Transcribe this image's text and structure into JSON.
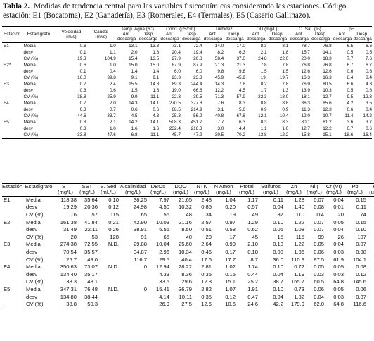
{
  "caption": {
    "label": "Tabla 2.",
    "text": "Medidas de tendencia central para las variables fisicoquímicas considerando las estaciones. Código estación: E1 (Bocatoma), E2 (Ganadería), E3 (Romerales, E4 (Termales), E5 (Caserío Gallinazo)."
  },
  "table1": {
    "h_estacion": "Estación",
    "h_estadigrafo": "Estadígrafo",
    "h_velocidad": "Velocidad",
    "h_velocidad_u": "(m/s)",
    "h_caudal": "Caudal",
    "h_caudal_u": "(m³/s)",
    "h_temp": "Temp. Agua (ºC)",
    "h_cond": "Cond. (μS/cm)",
    "h_turb": "Turbidez",
    "h_od": "OD (mg/L)",
    "h_osat": "O. Sat. (%)",
    "h_ph": "pH",
    "sub_ant": "Ant.",
    "sub_desp": "Desp.",
    "sub_descarga": "descarga",
    "rows": [
      [
        "E1",
        "Media",
        "0.6",
        "1.0",
        "13.1",
        "13.3",
        "73.1",
        "72.4",
        "14.0",
        "17.0",
        "8.3",
        "8.1",
        "78.7",
        "76.8",
        "6.5",
        "6.6"
      ],
      [
        "",
        "desv",
        "0.1",
        "1.1",
        "2.0",
        "1.8",
        "20.4",
        "19.4",
        "8.2",
        "6.3",
        "2.1",
        "1.8",
        "15.7",
        "14.1",
        "0.5",
        "0.5"
      ],
      [
        "",
        "CV (%)",
        "19.3",
        "104.9",
        "15.4",
        "13.5",
        "27.9",
        "26.8",
        "58.4",
        "37.0",
        "24.8",
        "22.0",
        "20.0",
        "18.3",
        "7.7",
        "7.6"
      ],
      [
        "E2*",
        "Media",
        "0.6",
        "1.0",
        "15.0",
        "15.0",
        "87.9",
        "87.9",
        "21.3",
        "21.3",
        "7.8",
        "7.8",
        "76.8",
        "76.8",
        "6.7",
        "6.7"
      ],
      [
        "",
        "desv",
        "0.1",
        "0.4",
        "1.4",
        "1.4",
        "6.0",
        "6.0",
        "9.8",
        "9.8",
        "1.5",
        "1.5",
        "12.6",
        "12.6",
        "0.6",
        "0.6"
      ],
      [
        "",
        "CV (%)",
        "16.0",
        "39.8",
        "9.1",
        "9.1",
        "23.3",
        "23.3",
        "45.9",
        "45.9",
        "19.",
        "19.7",
        "16.3",
        "16.3",
        "8.4",
        "8.4"
      ],
      [
        "E3",
        "Media",
        "0.7",
        "2.4",
        "15.5",
        "14.8",
        "89.3",
        "244.4",
        "14.3",
        "7.8",
        "8.2",
        "7.8",
        "76.9",
        "80.5",
        "6.6",
        "4.3"
      ],
      [
        "",
        "desv",
        "0.3",
        "0.6",
        "1.5",
        "1.6",
        "19.0",
        "66.6",
        "12.2",
        "4.5",
        "1.7",
        "1.3",
        "13.9",
        "10.3",
        "0.5",
        "0.6"
      ],
      [
        "",
        "CV (%)",
        "38.8",
        "25.9",
        "9.9",
        "11.1",
        "22.3",
        "39.5",
        "71.3",
        "57.9",
        "22.3",
        "18.0",
        "18.1",
        "12.7",
        "9.5",
        "12.8"
      ],
      [
        "E4",
        "Media",
        "0.7",
        "2.0",
        "14.3",
        "14.1",
        "270.5",
        "377.8",
        "7.6",
        "8.3",
        "8.8",
        "8.8",
        "86.3",
        "85.6",
        "4.2",
        "3.5"
      ],
      [
        "",
        "desv",
        "0.3",
        "0.7",
        "0.6",
        "0.6",
        "68.5",
        "214.9",
        "3.1",
        "5.6",
        "0.9",
        "0.9",
        "11.3",
        "12.3",
        "0.6",
        "0.4"
      ],
      [
        "",
        "CV (%)",
        "44.6",
        "33.7",
        "4.5",
        "4.3",
        "25.3",
        "56.9",
        "40.8",
        "67.8",
        "12.1",
        "10.4",
        "12.0",
        "10.7",
        "11.4",
        "14.2"
      ],
      [
        "E5",
        "Media",
        "0.8",
        "2.1",
        "14.2",
        "14.1",
        "508.3",
        "451.7",
        "7.7",
        "6.3",
        "8.3",
        "8.3",
        "80.1",
        "81.2",
        "3.6",
        "3.7"
      ],
      [
        "",
        "desv",
        "0.3",
        "1.0",
        "1.6",
        "1.6",
        "232.4",
        "216.3",
        "3.0",
        "4.4",
        "1.1",
        "1.0",
        "12.7",
        "12.2",
        "0.7",
        "0.6"
      ],
      [
        "",
        "CV (%)",
        "33.8",
        "47.6",
        "6.8",
        "11.1",
        "45.7",
        "47.9",
        "39.5",
        "70.2",
        "13.8",
        "12.2",
        "15.8",
        "15.1",
        "18.6",
        "16.4"
      ]
    ]
  },
  "table2": {
    "headers": [
      "Estación",
      "Estadígrafo",
      "ST",
      "SST",
      "S. Sed",
      "Alcalinidad",
      "DBO5",
      "DQO",
      "NTK",
      "N Amon",
      "Ptotal",
      "Sulfuros",
      "Zn",
      "Ni (",
      "Cr (VI)",
      "Pb",
      "Hg"
    ],
    "units": [
      "",
      "",
      "(mg/L)",
      "(mg/L)",
      "(mL/L)",
      "(mg/L)",
      "(mg/L)",
      "(mg/L)",
      "(mg/L)",
      "(mg/L)",
      "(mg/L)",
      "(mg/L)",
      "(mg/L)",
      "(mg/L)",
      "(mg/L)",
      "(mg/L)",
      "(ug/L)"
    ],
    "rows": [
      [
        "E1",
        "Media",
        "118.38",
        "35.64",
        "0.10",
        "38.25",
        "7.97",
        "21.65",
        "2.48",
        "1.04",
        "1.17",
        "0.11",
        "1.28",
        "0.07",
        "0.04",
        "0.15",
        "0.19"
      ],
      [
        "",
        "desv",
        "19.29",
        "20.36",
        "0.12",
        "24.98",
        "4.50",
        "10.32",
        "0.85",
        "0.20",
        "0.57",
        "0.04",
        "1.40",
        "0.08",
        "0.01",
        "0.11",
        "0.14"
      ],
      [
        "",
        "CV (%)",
        "16",
        "57",
        "115",
        "65",
        "56",
        "48",
        "34",
        "19",
        "49",
        "37",
        "110",
        "114",
        "20",
        "74",
        "70"
      ],
      [
        "E2",
        "Media",
        "161.38",
        "41.84",
        "0.21",
        "42.90",
        "10.03",
        "21.16",
        "2.57",
        "0.97",
        "1.29",
        "0.10",
        "1.22",
        "0.07",
        "0.05",
        "0.15",
        "0.17"
      ],
      [
        "",
        "desv",
        "31.49",
        "22.11",
        "0.26",
        "38.91",
        "6.56",
        "8.50",
        "0.51",
        "0.58",
        "0.62",
        "0.05",
        "1.08",
        "0.07",
        "0.04",
        "0.10",
        "0.09"
      ],
      [
        "",
        "CV (%)",
        "20",
        "53",
        "128",
        "91",
        "65",
        "40",
        "20",
        "17",
        "45",
        "15",
        "115",
        "99",
        "26",
        "107",
        "68"
      ],
      [
        "E3",
        "Media",
        "274.38",
        "72.55",
        "N.D.",
        "29.88",
        "10.04",
        "25.60",
        "2.64",
        "0.99",
        "2.10",
        "0.13",
        "1.22",
        "0.05",
        "0.04",
        "0.07",
        "0.13"
      ],
      [
        "",
        "desv",
        "70.54",
        "35.57",
        "",
        "34.87",
        "2.96",
        "10.34",
        "0.46",
        "0.17",
        "0.18",
        "0.03",
        "1.36",
        "0.06",
        "0.03",
        "0.08",
        "0.09"
      ],
      [
        "",
        "CV (%)",
        "25.7",
        "49.0",
        "",
        "116.7",
        "29.5",
        "40.4",
        "17.6",
        "17.7",
        "8.7",
        "36.0",
        "110.9",
        "87.5",
        "61.9",
        "104.1",
        "74.0"
      ],
      [
        "E4",
        "Media",
        "350.63",
        "73.07",
        "N.D.",
        "0",
        "12.94",
        "28.22",
        "2.81",
        "1.02",
        "1.74",
        "0.10",
        "0.72",
        "0.05",
        "0.05",
        "0.08",
        "0.12"
      ],
      [
        "",
        "desv",
        "134.40",
        "35.17",
        "",
        "",
        "4.33",
        "8.36",
        "0.35",
        "0.15",
        "0.44",
        "0.04",
        "1.19",
        "0.03",
        "0.03",
        "0.12",
        "0.07"
      ],
      [
        "",
        "CV (%)",
        "38.3",
        "48.1",
        "",
        "",
        "33.5",
        "29.6",
        "12.3",
        "15.1",
        "25.2",
        "38.7",
        "165.7",
        "60.5",
        "64.8",
        "145.6",
        "68.5"
      ],
      [
        "E5",
        "Media",
        "347.31",
        "76.48",
        "N.D.",
        "0",
        "15.41",
        "36.79",
        "2.82",
        "1.07",
        "1.91",
        "0.10",
        "0.73",
        "0.06",
        "0.05",
        "0.06",
        "0.10"
      ],
      [
        "",
        "desv",
        "134.80",
        "38.44",
        "",
        "",
        "4.14",
        "10.11",
        "0.35",
        "0.12",
        "0.47",
        "0.04",
        "1.32",
        "0.04",
        "0.03",
        "0.07",
        "0.07"
      ],
      [
        "",
        "CV (%)",
        "38.8",
        "50.3",
        "",
        "",
        "26.9",
        "27.5",
        "12.6",
        "10.6",
        "24.6",
        "42.2",
        "179.9",
        "62.0",
        "64.8",
        "116.6",
        "71.2"
      ]
    ]
  }
}
